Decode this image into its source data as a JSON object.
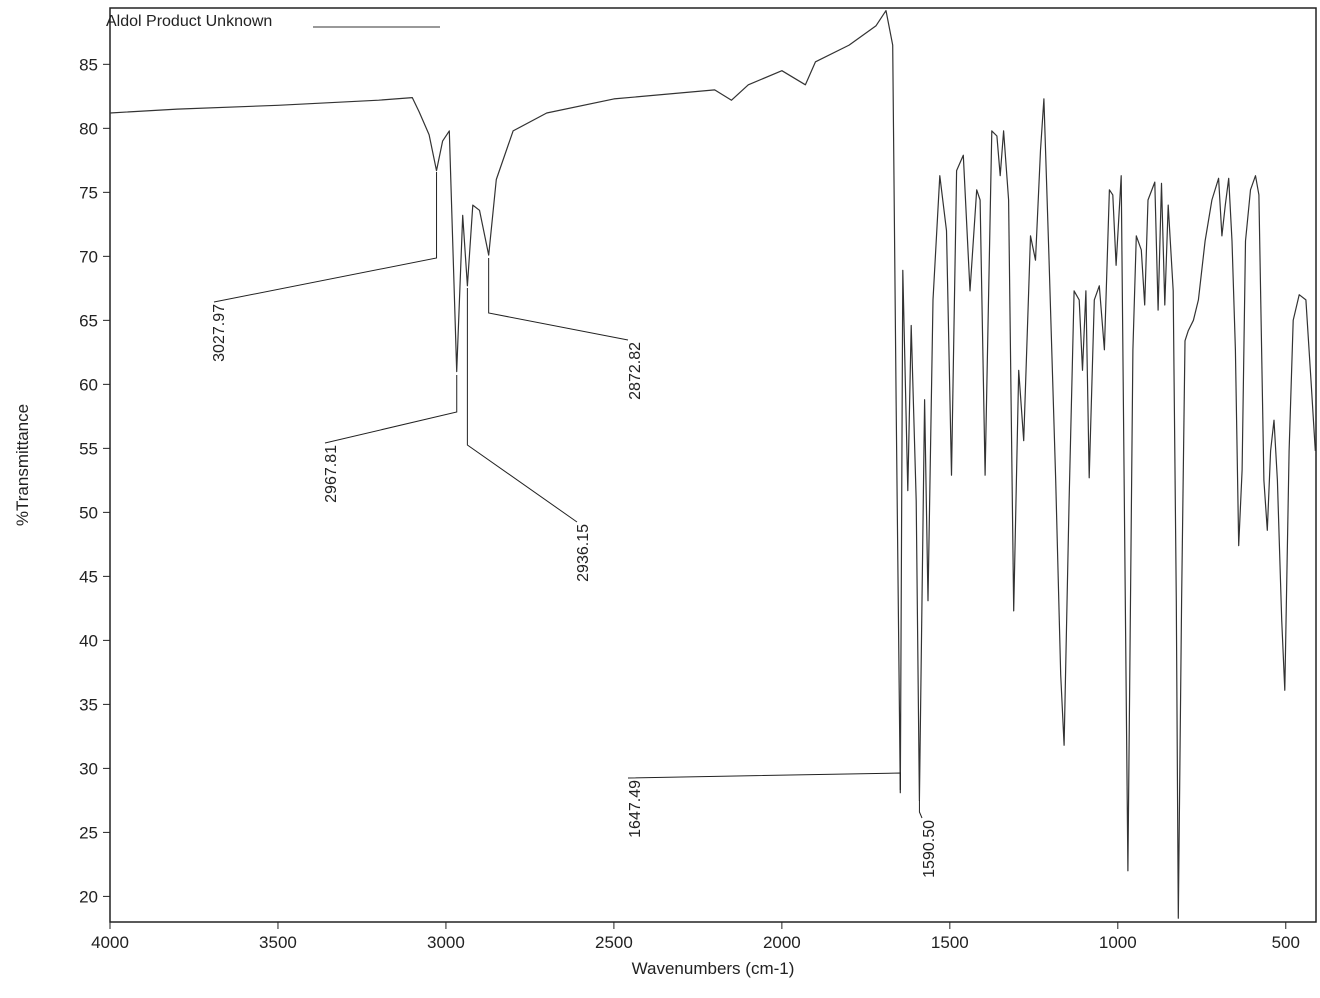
{
  "chart_data": {
    "type": "line",
    "title": "Aldol Product Unknown",
    "x_label": "Wavenumbers (cm-1)",
    "y_label": "%Transmittance",
    "color": "#333333",
    "xlim": [
      4000,
      410
    ],
    "ylim": [
      18,
      89.4
    ],
    "xticks": [
      4000,
      3500,
      3000,
      2500,
      2000,
      1500,
      1000,
      500
    ],
    "yticks": [
      20,
      25,
      30,
      35,
      40,
      45,
      50,
      55,
      60,
      65,
      70,
      75,
      80,
      85
    ],
    "x": [
      4000,
      3800,
      3500,
      3200,
      3100,
      3080,
      3050,
      3027.97,
      3010,
      2990,
      2967.81,
      2950,
      2936.15,
      2920,
      2900,
      2872.82,
      2850,
      2800,
      2700,
      2500,
      2200,
      2150,
      2100,
      2000,
      1930,
      1900,
      1800,
      1720,
      1690,
      1670,
      1660,
      1647.49,
      1640,
      1625,
      1615,
      1600,
      1590.5,
      1575,
      1565,
      1550,
      1530,
      1510,
      1495,
      1480,
      1460,
      1440,
      1420,
      1410,
      1395,
      1375,
      1360,
      1350,
      1340,
      1325,
      1310,
      1295,
      1280,
      1260,
      1245,
      1230,
      1220,
      1205,
      1185,
      1170,
      1160,
      1145,
      1130,
      1115,
      1105,
      1095,
      1085,
      1070,
      1055,
      1040,
      1025,
      1015,
      1005,
      990,
      970,
      955,
      945,
      930,
      920,
      910,
      890,
      880,
      870,
      860,
      850,
      835,
      826,
      820,
      810,
      800,
      790,
      775,
      760,
      740,
      720,
      700,
      690,
      680,
      670,
      660,
      650,
      640,
      630,
      620,
      605,
      590,
      580,
      565,
      555,
      545,
      535,
      525,
      512,
      503,
      490,
      478,
      460,
      440,
      425,
      412
    ],
    "values": [
      81.2,
      81.5,
      81.8,
      82.2,
      82.4,
      81.3,
      79.5,
      76.7,
      79,
      79.8,
      61,
      73.2,
      67.7,
      74,
      73.6,
      70.1,
      76,
      79.8,
      81.2,
      82.3,
      83,
      82.2,
      83.4,
      84.5,
      83.4,
      85.2,
      86.5,
      88,
      89.2,
      86.5,
      58.8,
      28.1,
      68.9,
      51.7,
      64.6,
      50.9,
      27.5,
      58.8,
      43.1,
      66.6,
      76.3,
      72,
      52.9,
      76.7,
      77.9,
      67.3,
      75.2,
      74.4,
      52.9,
      79.8,
      79.4,
      76.3,
      79.8,
      74.4,
      42.3,
      61.1,
      55.6,
      71.6,
      69.7,
      78.3,
      82.3,
      70.1,
      52.5,
      37.3,
      31.8,
      50.9,
      67.3,
      66.6,
      61.1,
      67.3,
      52.7,
      66.6,
      67.7,
      62.7,
      75.2,
      74.8,
      69.3,
      76.3,
      22,
      62.7,
      71.6,
      70.5,
      66.2,
      74.4,
      75.8,
      65.8,
      75.7,
      66.2,
      74,
      67.3,
      43.1,
      18.3,
      43.1,
      63.4,
      64.2,
      65,
      66.6,
      71.2,
      74.4,
      76.1,
      71.6,
      74,
      76.1,
      71.2,
      62.7,
      47.4,
      53.3,
      71.2,
      75.2,
      76.3,
      74.8,
      52.5,
      48.6,
      54.8,
      57.2,
      52.5,
      41.6,
      36.1,
      54.8,
      65,
      67,
      66.6,
      60.3,
      54.8
    ],
    "peak_labels": [
      3027.97,
      2967.81,
      2936.15,
      2872.82,
      1647.49,
      {
        "value": 1590.5,
        "label": "1590.50"
      }
    ]
  }
}
